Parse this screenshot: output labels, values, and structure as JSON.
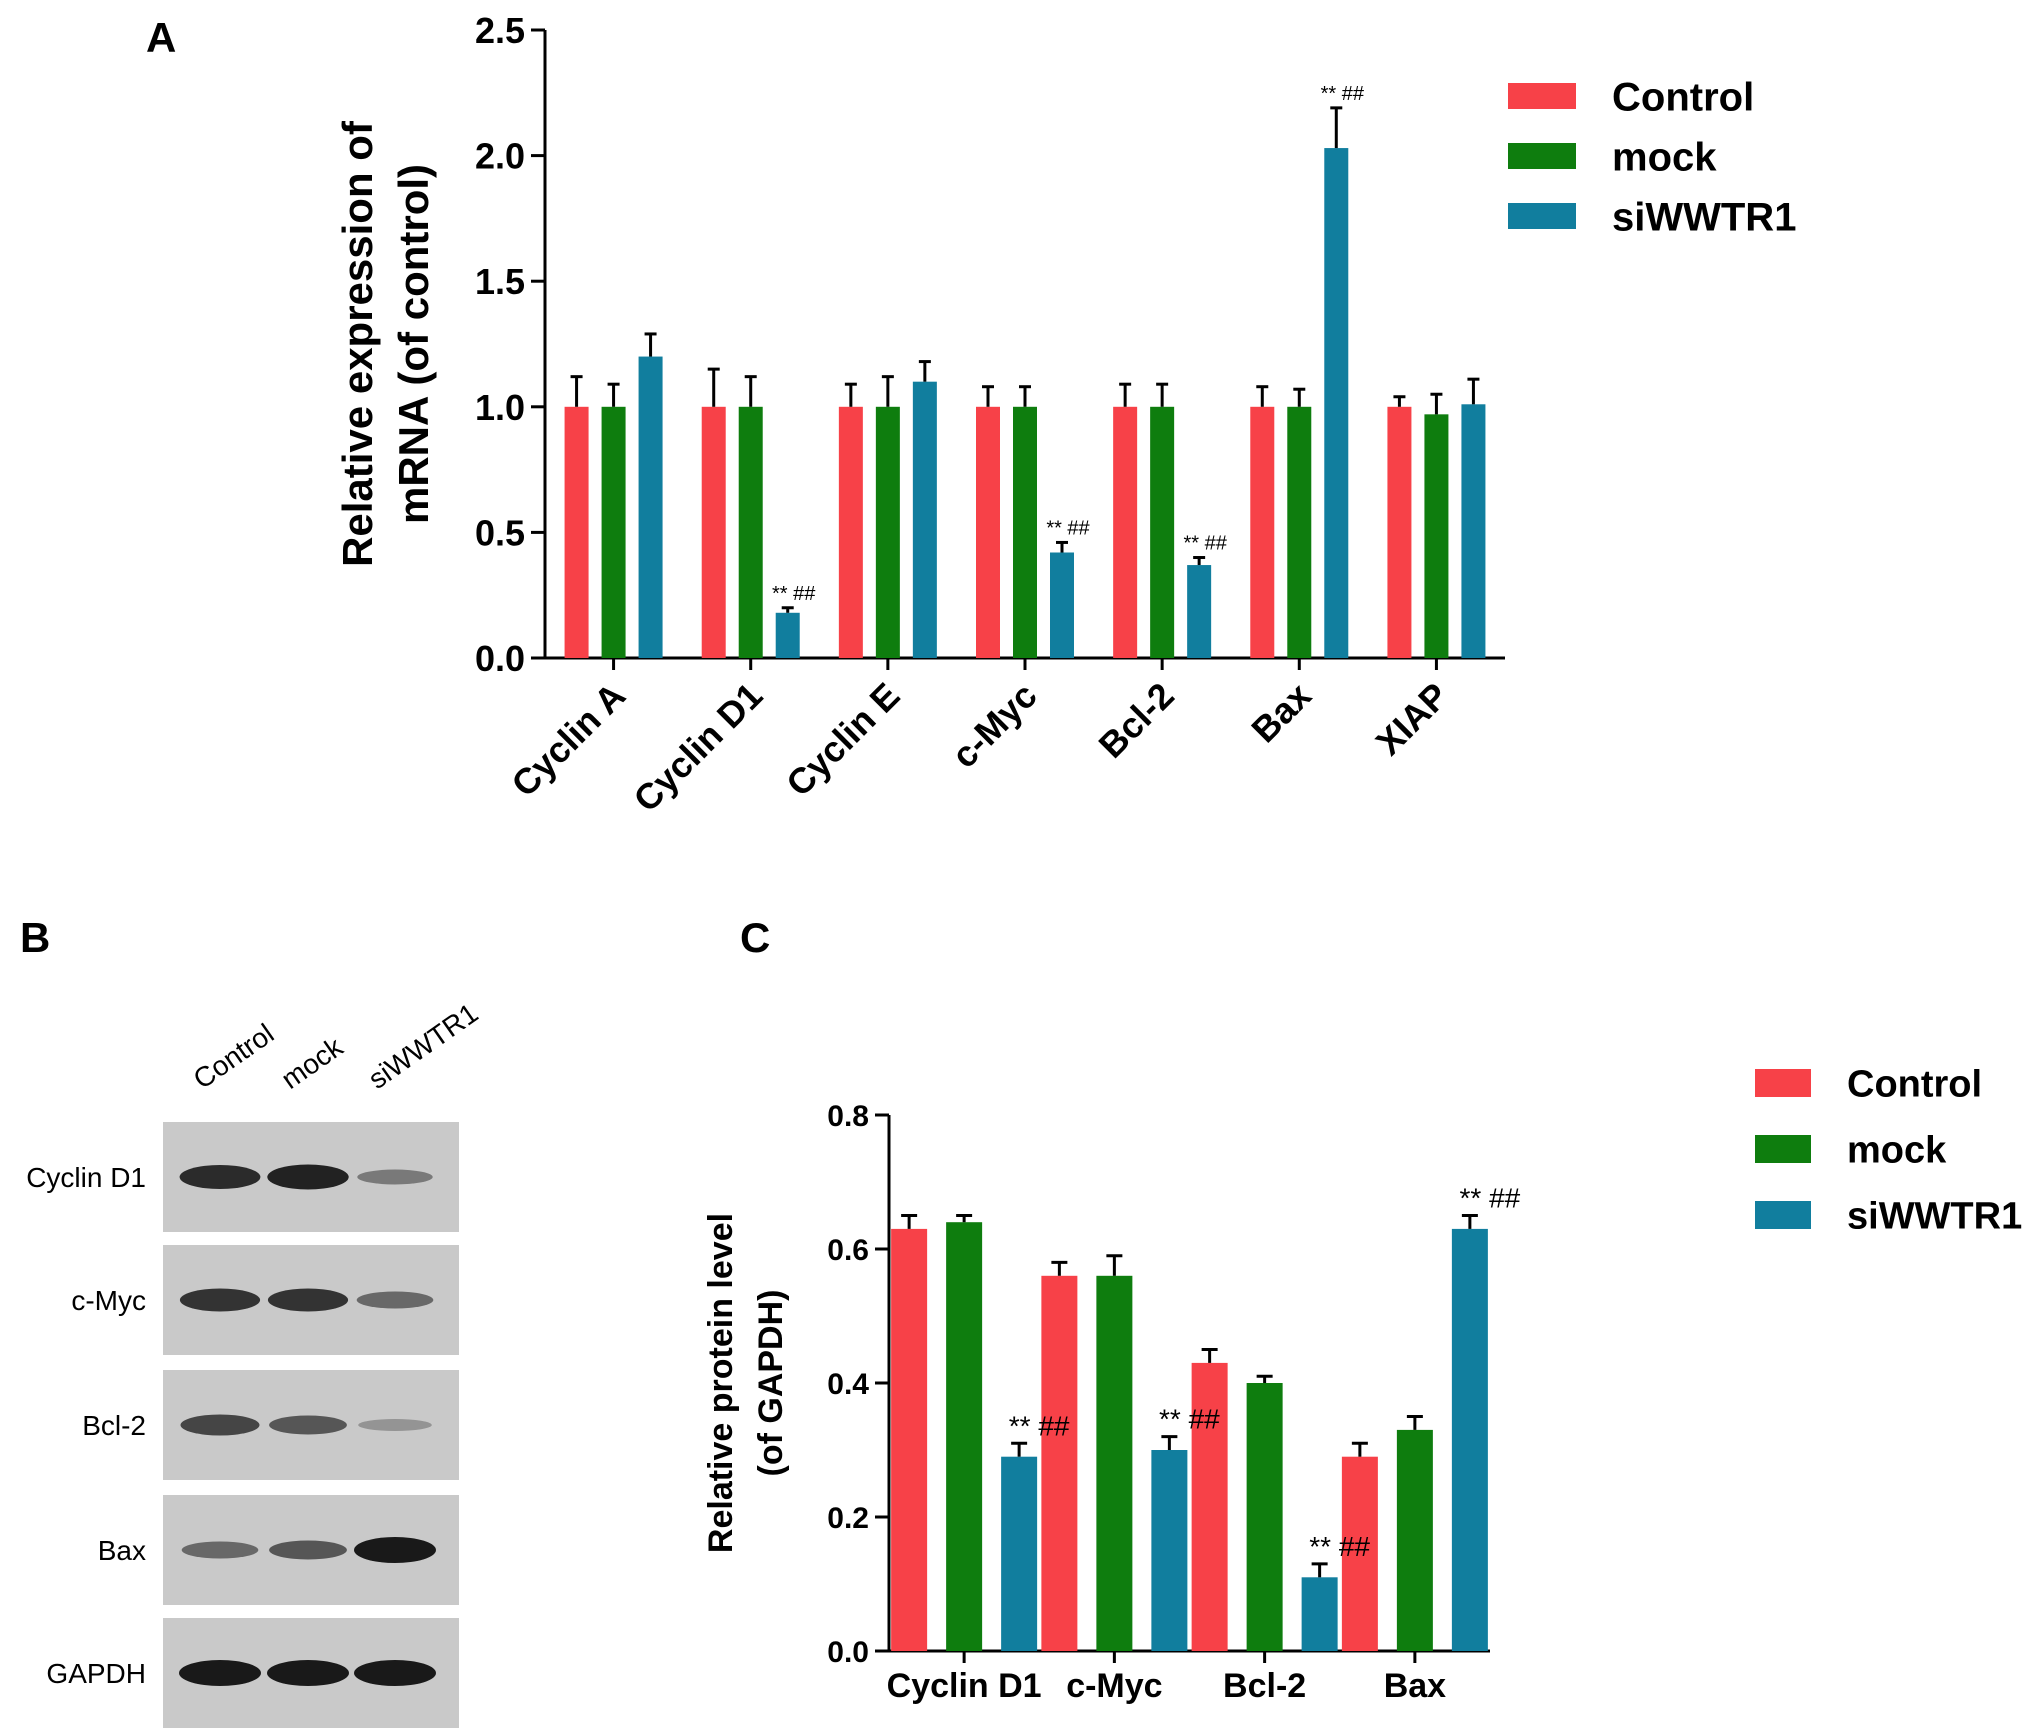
{
  "colors": {
    "Control": "#f74148",
    "mock": "#0e7d0e",
    "siWWTR1": "#117e9e"
  },
  "panels": {
    "A": "A",
    "B": "B",
    "C": "C"
  },
  "blot": {
    "lanes": [
      "Control",
      "mock",
      "siWWTR1"
    ],
    "rows": [
      {
        "label": "Cyclin D1",
        "intensity": [
          0.9,
          0.95,
          0.45
        ]
      },
      {
        "label": "c-Myc",
        "intensity": [
          0.85,
          0.85,
          0.55
        ]
      },
      {
        "label": "Bcl-2",
        "intensity": [
          0.75,
          0.65,
          0.3
        ]
      },
      {
        "label": "Bax",
        "intensity": [
          0.55,
          0.65,
          1.0
        ]
      },
      {
        "label": "GAPDH",
        "intensity": [
          1.0,
          1.0,
          1.0
        ]
      }
    ]
  },
  "chart_data": [
    {
      "id": "A",
      "type": "bar",
      "title": "",
      "xlabel": "",
      "ylabel": [
        "Relative expression of",
        "mRNA (of control)"
      ],
      "ylim": [
        0,
        2.5
      ],
      "yticks": [
        "0.0",
        "0.5",
        "1.0",
        "1.5",
        "2.0",
        "2.5"
      ],
      "grid": false,
      "legend_position": "top-right",
      "categories": [
        "Cyclin A",
        "Cyclin D1",
        "Cyclin E",
        "c-Myc",
        "Bcl-2",
        "Bax",
        "XIAP"
      ],
      "series": [
        {
          "name": "Control",
          "values": [
            1.0,
            1.0,
            1.0,
            1.0,
            1.0,
            1.0,
            1.0
          ],
          "errors": [
            0.12,
            0.15,
            0.09,
            0.08,
            0.09,
            0.08,
            0.04
          ]
        },
        {
          "name": "mock",
          "values": [
            1.0,
            1.0,
            1.0,
            1.0,
            1.0,
            1.0,
            0.97
          ],
          "errors": [
            0.09,
            0.12,
            0.12,
            0.08,
            0.09,
            0.07,
            0.08
          ]
        },
        {
          "name": "siWWTR1",
          "values": [
            1.2,
            0.18,
            1.1,
            0.42,
            0.37,
            2.03,
            1.01
          ],
          "errors": [
            0.09,
            0.02,
            0.08,
            0.04,
            0.03,
            0.16,
            0.1
          ]
        }
      ],
      "annotations": [
        {
          "category": "Cyclin D1",
          "series": "siWWTR1",
          "text": "** ##"
        },
        {
          "category": "c-Myc",
          "series": "siWWTR1",
          "text": "** ##"
        },
        {
          "category": "Bcl-2",
          "series": "siWWTR1",
          "text": "** ##"
        },
        {
          "category": "Bax",
          "series": "siWWTR1",
          "text": "** ##"
        }
      ]
    },
    {
      "id": "C",
      "type": "bar",
      "title": "",
      "xlabel": "",
      "ylabel": [
        "Relative protein level",
        "(of GAPDH)"
      ],
      "ylim": [
        0,
        0.8
      ],
      "yticks": [
        "0.0",
        "0.2",
        "0.4",
        "0.6",
        "0.8"
      ],
      "grid": false,
      "legend_position": "top-right",
      "categories": [
        "Cyclin D1",
        "c-Myc",
        "Bcl-2",
        "Bax"
      ],
      "series": [
        {
          "name": "Control",
          "values": [
            0.63,
            0.56,
            0.43,
            0.29
          ],
          "errors": [
            0.02,
            0.02,
            0.02,
            0.02
          ]
        },
        {
          "name": "mock",
          "values": [
            0.64,
            0.56,
            0.4,
            0.33
          ],
          "errors": [
            0.01,
            0.03,
            0.01,
            0.02
          ]
        },
        {
          "name": "siWWTR1",
          "values": [
            0.29,
            0.3,
            0.11,
            0.63
          ],
          "errors": [
            0.02,
            0.02,
            0.02,
            0.02
          ]
        }
      ],
      "annotations": [
        {
          "category": "Cyclin D1",
          "series": "siWWTR1",
          "text": "** ##"
        },
        {
          "category": "c-Myc",
          "series": "siWWTR1",
          "text": "** ##"
        },
        {
          "category": "Bcl-2",
          "series": "siWWTR1",
          "text": "** ##"
        },
        {
          "category": "Bax",
          "series": "siWWTR1",
          "text": "** ##"
        }
      ]
    }
  ]
}
